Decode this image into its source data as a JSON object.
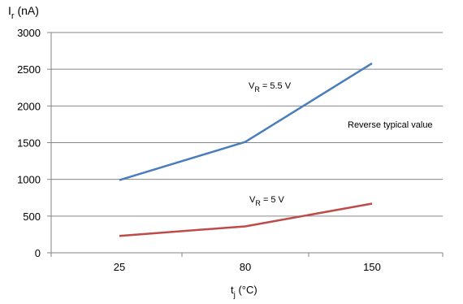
{
  "chart_data": {
    "type": "line",
    "ylabel_main": "I",
    "ylabel_sub": "r",
    "ylabel_unit": " (nA)",
    "xlabel_main": "t",
    "xlabel_sub": "j",
    "xlabel_unit": " (°C)",
    "categories": [
      "25",
      "80",
      "150"
    ],
    "ylim": [
      0,
      3000
    ],
    "y_ticks": [
      "0",
      "500",
      "1000",
      "1500",
      "2000",
      "2500",
      "3000"
    ],
    "grid": true,
    "series": [
      {
        "label_main": "V",
        "label_sub": "R",
        "label_rest": " = 5.5 V",
        "color": "#4a7ebb",
        "values": [
          990,
          1510,
          2580
        ]
      },
      {
        "label_main": "V",
        "label_sub": "R",
        "label_rest": " = 5 V",
        "color": "#be4b48",
        "values": [
          230,
          360,
          670
        ]
      }
    ],
    "annotation": "Reverse typical value"
  }
}
